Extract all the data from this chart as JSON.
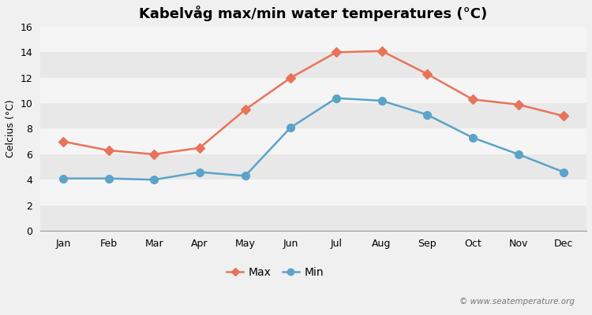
{
  "title": "Kabelvåg max/min water temperatures (°C)",
  "ylabel": "Celcius (°C)",
  "months": [
    "Jan",
    "Feb",
    "Mar",
    "Apr",
    "May",
    "Jun",
    "Jul",
    "Aug",
    "Sep",
    "Oct",
    "Nov",
    "Dec"
  ],
  "max_temps": [
    7.0,
    6.3,
    6.0,
    6.5,
    9.5,
    12.0,
    14.0,
    14.1,
    12.3,
    10.3,
    9.9,
    9.0
  ],
  "min_temps": [
    4.1,
    4.1,
    4.0,
    4.6,
    4.3,
    8.1,
    10.4,
    10.2,
    9.1,
    7.3,
    6.0,
    4.6
  ],
  "max_color": "#e8735a",
  "min_color": "#5ba3c9",
  "background_color": "#f0f0f0",
  "plot_bg_color": "#ffffff",
  "band_color_light": "#f5f5f5",
  "band_color_dark": "#e8e8e8",
  "ylim": [
    0,
    16
  ],
  "yticks": [
    0,
    2,
    4,
    6,
    8,
    10,
    12,
    14,
    16
  ],
  "watermark": "© www.seatemperature.org",
  "max_label": "Max",
  "min_label": "Min",
  "title_fontsize": 13,
  "label_fontsize": 9,
  "tick_fontsize": 9,
  "legend_fontsize": 10,
  "marker_size": 6,
  "line_width": 1.8
}
